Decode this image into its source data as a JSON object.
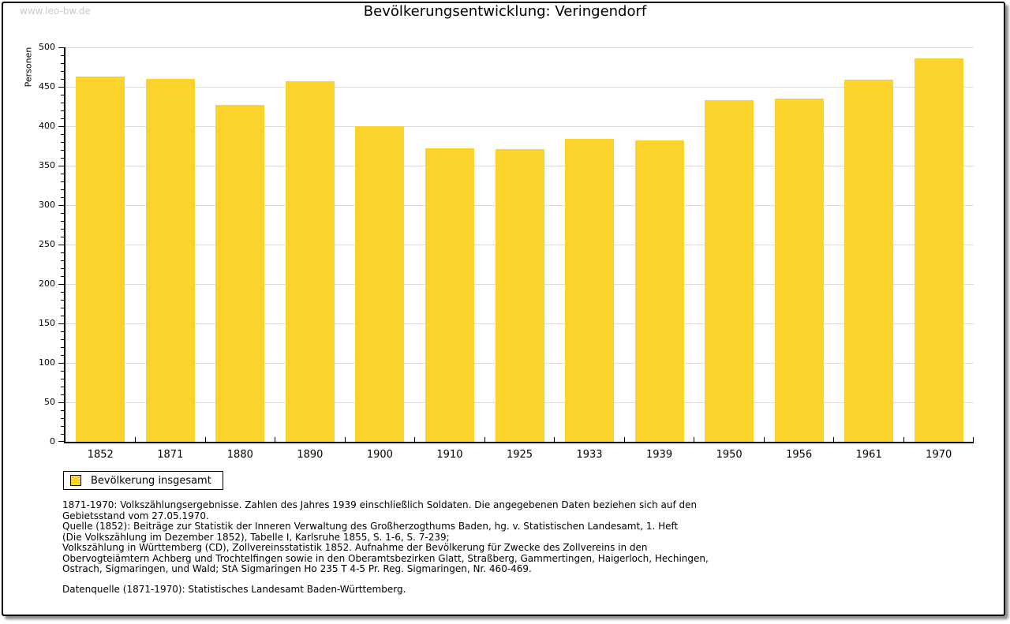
{
  "page": {
    "watermark": "www.leo-bw.de",
    "title": "Bevölkerungsentwicklung: Veringendorf"
  },
  "chart_data": {
    "type": "bar",
    "title": "Bevölkerungsentwicklung: Veringendorf",
    "xlabel": "",
    "ylabel": "Personen",
    "categories": [
      "1852",
      "1871",
      "1880",
      "1890",
      "1900",
      "1910",
      "1925",
      "1933",
      "1939",
      "1950",
      "1956",
      "1961",
      "1970"
    ],
    "values": [
      463,
      460,
      427,
      457,
      400,
      372,
      371,
      384,
      382,
      433,
      435,
      459,
      486
    ],
    "ylim": [
      0,
      500
    ],
    "ytick_step": 50,
    "ytick_minor_step": 10,
    "grid": true,
    "legend_position": "bottom-left",
    "legend_entries": [
      "Bevölkerung insgesamt"
    ],
    "bar_color": "#fcd32b",
    "grid_color": "#dbdbdb"
  },
  "legend": {
    "label": "Bevölkerung insgesamt",
    "swatch_color": "#fcd32b"
  },
  "footnotes": {
    "lines": [
      "1871-1970: Volkszählungsergebnisse. Zahlen des Jahres 1939 einschließlich Soldaten. Die angegebenen Daten beziehen sich auf den",
      "Gebietsstand vom 27.05.1970.",
      "Quelle (1852): Beiträge zur Statistik der Inneren Verwaltung des Großherzogthums Baden, hg. v. Statistischen Landesamt, 1. Heft",
      "(Die Volkszählung im Dezember 1852), Tabelle I, Karlsruhe 1855, S. 1-6, S. 7-239;",
      "Volkszählung in Württemberg (CD), Zollvereinsstatistik 1852. Aufnahme der Bevölkerung für Zwecke des Zollvereins in den",
      "Obervogteiämtern Achberg und Trochtelfingen sowie in den Oberamtsbezirken Glatt, Straßberg, Gammertingen, Haigerloch, Hechingen,",
      "Ostrach, Sigmaringen, und Wald; StA Sigmaringen Ho 235 T 4-5 Pr. Reg. Sigmaringen, Nr. 460-469."
    ],
    "datasource": "Datenquelle (1871-1970): Statistisches Landesamt Baden-Württemberg."
  }
}
